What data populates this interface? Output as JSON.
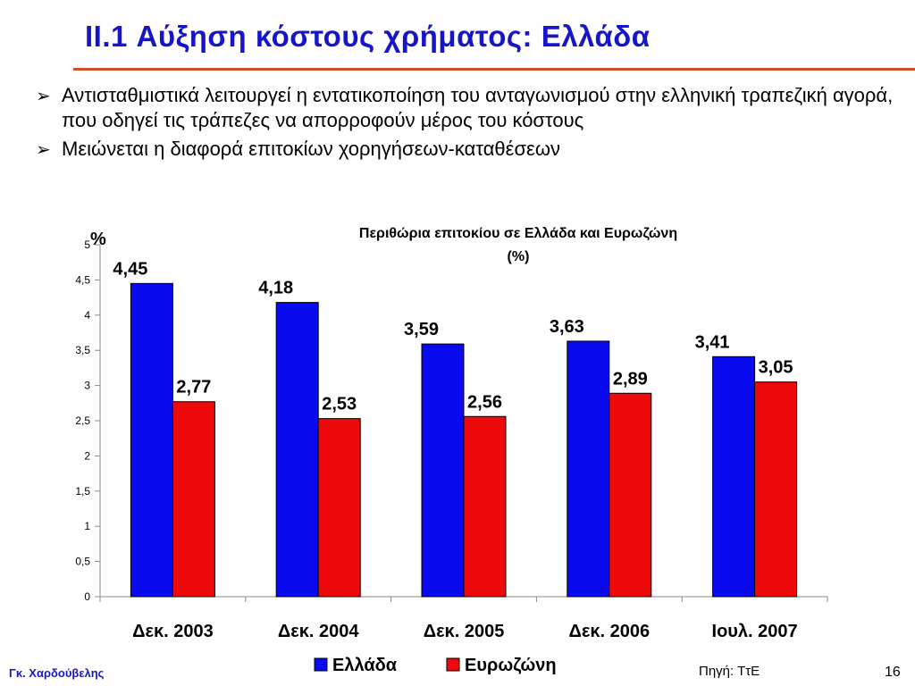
{
  "slide": {
    "title": "II.1   Αύξηση κόστους χρήματος:  Ελλάδα",
    "bullet_marker": "➢",
    "bullets": [
      "Αντισταθμιστικά λειτουργεί η εντατικοποίηση του ανταγωνισμού στην ελληνική τραπεζική αγορά, που οδηγεί τις τράπεζες να απορροφούν μέρος του κόστους",
      "Μειώνεται η διαφορά επιτοκίων χορηγήσεων-καταθέσεων"
    ],
    "footer_author": "Γκ. Χαρδούβελης",
    "source": "Πηγή: ΤτΕ",
    "page_number": "16",
    "accent_color": "#1616c8",
    "rule_color": "#cc4f2a"
  },
  "chart_data": {
    "type": "bar",
    "title_lines": [
      "Περιθώρια επιτοκίου σε Ελλάδα και Ευρωζώνη",
      "(%)"
    ],
    "ylabel": "%",
    "ylim": [
      0,
      5
    ],
    "yticks": [
      "0",
      "0,5",
      "1",
      "1,5",
      "2",
      "2,5",
      "3",
      "3,5",
      "4",
      "4,5",
      "5"
    ],
    "categories": [
      "Δεκ. 2003",
      "Δεκ. 2004",
      "Δεκ. 2005",
      "Δεκ. 2006",
      "Ιουλ. 2007"
    ],
    "series": [
      {
        "name": "Ελλάδα",
        "color": "#0a0aee",
        "values": [
          4.45,
          4.18,
          3.59,
          3.63,
          3.41
        ],
        "labels": [
          "4,45",
          "4,18",
          "3,59",
          "3,63",
          "3,41"
        ]
      },
      {
        "name": "Ευρωζώνη",
        "color": "#ee0a0a",
        "values": [
          2.77,
          2.53,
          2.56,
          2.89,
          3.05
        ],
        "labels": [
          "2,77",
          "2,53",
          "2,56",
          "2,89",
          "3,05"
        ]
      }
    ],
    "legend_position": "bottom-center",
    "grid": false
  }
}
